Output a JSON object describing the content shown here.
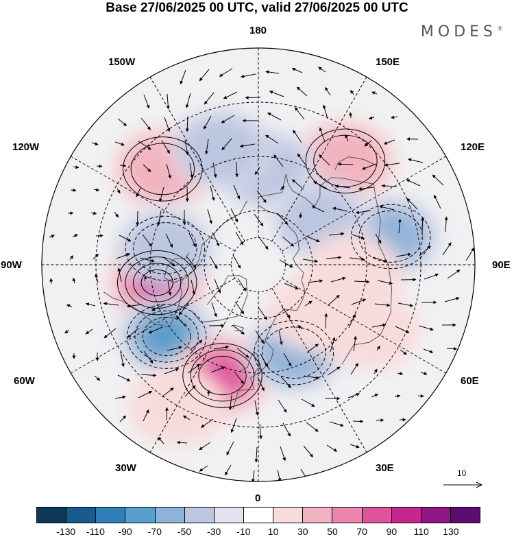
{
  "title": "Base 27/06/2025 00 UTC, valid 27/06/2025 00 UTC",
  "brand": "MODES",
  "brand_mark": "®",
  "longitude_labels": {
    "lon_180": "180",
    "lon_150e": "150E",
    "lon_120e": "120E",
    "lon_90e": "90E",
    "lon_60e": "60E",
    "lon_30e": "30E",
    "lon_0": "0",
    "lon_30w": "30W",
    "lon_60w": "60W",
    "lon_90w": "90W",
    "lon_120w": "120W",
    "lon_150w": "150W"
  },
  "vector_legend": {
    "value": "10"
  },
  "colorbar": {
    "colors": [
      "#0d3a5a",
      "#1a5b8f",
      "#2f7fb9",
      "#5a9ecb",
      "#8fb3d8",
      "#bcc6e0",
      "#e2e3ef",
      "#ffffff",
      "#f8dcdc",
      "#f2b3c0",
      "#ee85ad",
      "#e0539c",
      "#c4278e",
      "#921585",
      "#5c0d72"
    ],
    "tick_labels": [
      "-130",
      "-110",
      "-90",
      "-70",
      "-50",
      "-30",
      "-10",
      "10",
      "30",
      "50",
      "70",
      "90",
      "110",
      "130"
    ]
  },
  "anomaly_centers": [
    {
      "lon": -80,
      "lat": 52,
      "value": 100
    },
    {
      "lon": -52,
      "lat": 47,
      "value": -85
    },
    {
      "lon": -18,
      "lat": 47,
      "value": 70
    },
    {
      "lon": 22,
      "lat": 55,
      "value": -55
    },
    {
      "lon": 102,
      "lat": 40,
      "value": -50
    },
    {
      "lon": 60,
      "lat": 42,
      "value": 25
    },
    {
      "lon": 140,
      "lat": 40,
      "value": 40
    },
    {
      "lon": -135,
      "lat": 40,
      "value": 40
    },
    {
      "lon": -100,
      "lat": 55,
      "value": -40
    },
    {
      "lon": 175,
      "lat": 55,
      "value": -30
    },
    {
      "lon": -162,
      "lat": 45,
      "value": -30
    },
    {
      "lon": 125,
      "lat": 62,
      "value": -30
    },
    {
      "lon": 85,
      "lat": 55,
      "value": 20
    },
    {
      "lon": -30,
      "lat": 30,
      "value": 20
    },
    {
      "lon": 50,
      "lat": 62,
      "value": 10
    }
  ]
}
